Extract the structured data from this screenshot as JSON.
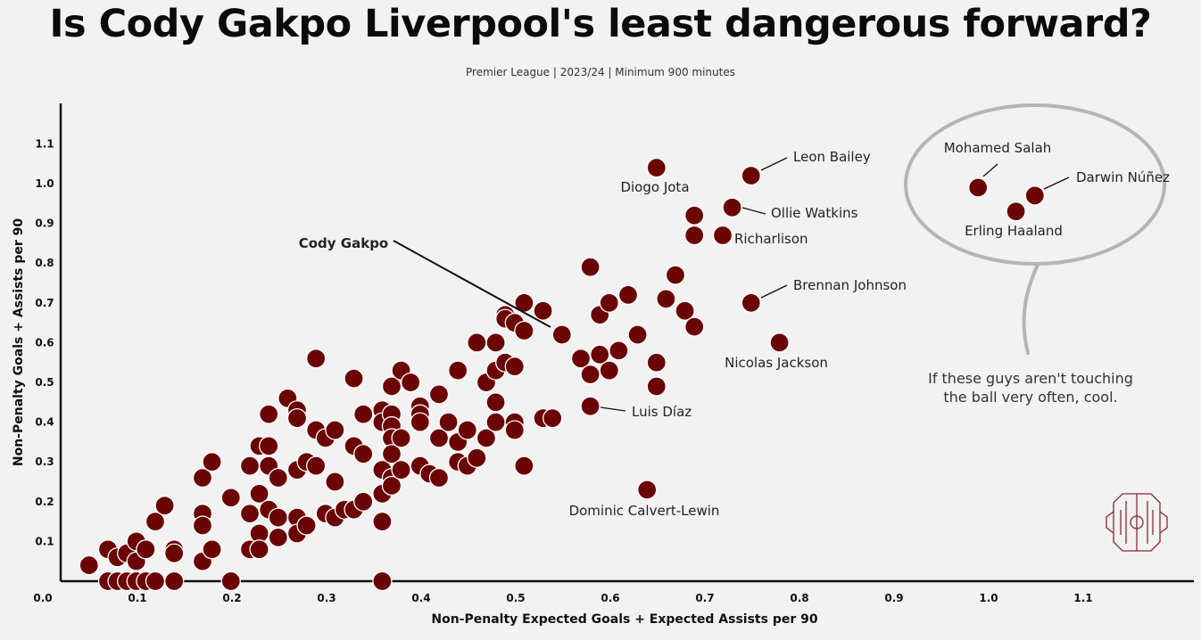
{
  "title": "Is Cody Gakpo Liverpool's least dangerous forward?",
  "subtitle": "Premier League | 2023/24 | Minimum 900 minutes",
  "chart_data": {
    "type": "scatter",
    "xlabel": "Non-Penalty Expected Goals + Expected Assists per 90",
    "ylabel": "Non-Penalty Goals + Assists per 90",
    "xlim": [
      0.0,
      1.2
    ],
    "ylim": [
      0.0,
      1.2
    ],
    "xticks": [
      "0.0",
      "0.1",
      "0.2",
      "0.3",
      "0.4",
      "0.5",
      "0.6",
      "0.7",
      "0.8",
      "0.9",
      "1.0",
      "1.1"
    ],
    "yticks": [
      "0.1",
      "0.2",
      "0.3",
      "0.4",
      "0.5",
      "0.6",
      "0.7",
      "0.8",
      "0.9",
      "1.0",
      "1.1"
    ],
    "grid": false,
    "point_color": "#6b0505",
    "annotation": "If these guys aren't touching the ball very often, cool.",
    "labeled_points": [
      {
        "name": "Leon Bailey",
        "x": 0.73,
        "y": 1.02
      },
      {
        "name": "Diogo Jota",
        "x": 0.63,
        "y": 1.04
      },
      {
        "name": "Ollie Watkins",
        "x": 0.71,
        "y": 0.94
      },
      {
        "name": "Richarlison",
        "x": 0.7,
        "y": 0.87
      },
      {
        "name": "Brennan Johnson",
        "x": 0.73,
        "y": 0.7
      },
      {
        "name": "Nicolas Jackson",
        "x": 0.76,
        "y": 0.6
      },
      {
        "name": "Cody Gakpo",
        "x": 0.53,
        "y": 0.62
      },
      {
        "name": "Luis Díaz",
        "x": 0.56,
        "y": 0.44
      },
      {
        "name": "Dominic Calvert-Lewin",
        "x": 0.62,
        "y": 0.23
      },
      {
        "name": "Mohamed Salah",
        "x": 0.97,
        "y": 0.99
      },
      {
        "name": "Darwin Núñez",
        "x": 1.03,
        "y": 0.97
      },
      {
        "name": "Erling Haaland",
        "x": 1.01,
        "y": 0.93
      }
    ],
    "points": [
      [
        0.03,
        0.04
      ],
      [
        0.05,
        0.08
      ],
      [
        0.05,
        0.0
      ],
      [
        0.06,
        0.06
      ],
      [
        0.06,
        0.0
      ],
      [
        0.07,
        0.07
      ],
      [
        0.07,
        0.0
      ],
      [
        0.08,
        0.1
      ],
      [
        0.08,
        0.05
      ],
      [
        0.08,
        0.0
      ],
      [
        0.09,
        0.08
      ],
      [
        0.09,
        0.0
      ],
      [
        0.1,
        0.15
      ],
      [
        0.1,
        0.0
      ],
      [
        0.11,
        0.19
      ],
      [
        0.12,
        0.08
      ],
      [
        0.12,
        0.07
      ],
      [
        0.12,
        0.0
      ],
      [
        0.15,
        0.26
      ],
      [
        0.15,
        0.17
      ],
      [
        0.15,
        0.14
      ],
      [
        0.15,
        0.05
      ],
      [
        0.16,
        0.3
      ],
      [
        0.16,
        0.08
      ],
      [
        0.18,
        0.21
      ],
      [
        0.18,
        0.0
      ],
      [
        0.2,
        0.29
      ],
      [
        0.2,
        0.17
      ],
      [
        0.2,
        0.08
      ],
      [
        0.21,
        0.34
      ],
      [
        0.21,
        0.22
      ],
      [
        0.21,
        0.12
      ],
      [
        0.21,
        0.08
      ],
      [
        0.22,
        0.42
      ],
      [
        0.22,
        0.34
      ],
      [
        0.22,
        0.29
      ],
      [
        0.22,
        0.18
      ],
      [
        0.23,
        0.26
      ],
      [
        0.23,
        0.16
      ],
      [
        0.23,
        0.11
      ],
      [
        0.24,
        0.46
      ],
      [
        0.25,
        0.43
      ],
      [
        0.25,
        0.41
      ],
      [
        0.25,
        0.28
      ],
      [
        0.25,
        0.16
      ],
      [
        0.25,
        0.12
      ],
      [
        0.26,
        0.3
      ],
      [
        0.26,
        0.14
      ],
      [
        0.27,
        0.56
      ],
      [
        0.27,
        0.38
      ],
      [
        0.27,
        0.29
      ],
      [
        0.28,
        0.36
      ],
      [
        0.28,
        0.17
      ],
      [
        0.29,
        0.38
      ],
      [
        0.29,
        0.25
      ],
      [
        0.29,
        0.16
      ],
      [
        0.3,
        0.18
      ],
      [
        0.31,
        0.51
      ],
      [
        0.31,
        0.34
      ],
      [
        0.31,
        0.18
      ],
      [
        0.32,
        0.42
      ],
      [
        0.32,
        0.32
      ],
      [
        0.32,
        0.2
      ],
      [
        0.34,
        0.43
      ],
      [
        0.34,
        0.4
      ],
      [
        0.34,
        0.28
      ],
      [
        0.34,
        0.22
      ],
      [
        0.34,
        0.15
      ],
      [
        0.34,
        0.0
      ],
      [
        0.35,
        0.49
      ],
      [
        0.35,
        0.42
      ],
      [
        0.35,
        0.39
      ],
      [
        0.35,
        0.36
      ],
      [
        0.35,
        0.32
      ],
      [
        0.35,
        0.26
      ],
      [
        0.35,
        0.24
      ],
      [
        0.36,
        0.53
      ],
      [
        0.36,
        0.36
      ],
      [
        0.36,
        0.28
      ],
      [
        0.37,
        0.5
      ],
      [
        0.38,
        0.44
      ],
      [
        0.38,
        0.42
      ],
      [
        0.38,
        0.4
      ],
      [
        0.38,
        0.29
      ],
      [
        0.39,
        0.27
      ],
      [
        0.4,
        0.47
      ],
      [
        0.4,
        0.36
      ],
      [
        0.4,
        0.26
      ],
      [
        0.41,
        0.4
      ],
      [
        0.42,
        0.53
      ],
      [
        0.42,
        0.35
      ],
      [
        0.42,
        0.3
      ],
      [
        0.43,
        0.38
      ],
      [
        0.43,
        0.29
      ],
      [
        0.44,
        0.31
      ],
      [
        0.44,
        0.6
      ],
      [
        0.45,
        0.5
      ],
      [
        0.45,
        0.36
      ],
      [
        0.46,
        0.6
      ],
      [
        0.46,
        0.53
      ],
      [
        0.46,
        0.45
      ],
      [
        0.46,
        0.4
      ],
      [
        0.47,
        0.67
      ],
      [
        0.47,
        0.55
      ],
      [
        0.47,
        0.66
      ],
      [
        0.48,
        0.65
      ],
      [
        0.48,
        0.54
      ],
      [
        0.48,
        0.4
      ],
      [
        0.48,
        0.38
      ],
      [
        0.49,
        0.7
      ],
      [
        0.49,
        0.63
      ],
      [
        0.49,
        0.29
      ],
      [
        0.51,
        0.68
      ],
      [
        0.51,
        0.41
      ],
      [
        0.52,
        0.41
      ],
      [
        0.55,
        0.56
      ],
      [
        0.56,
        0.79
      ],
      [
        0.56,
        0.52
      ],
      [
        0.57,
        0.67
      ],
      [
        0.57,
        0.57
      ],
      [
        0.58,
        0.7
      ],
      [
        0.58,
        0.53
      ],
      [
        0.59,
        0.58
      ],
      [
        0.6,
        0.72
      ],
      [
        0.61,
        0.62
      ],
      [
        0.63,
        0.55
      ],
      [
        0.63,
        0.49
      ],
      [
        0.64,
        0.71
      ],
      [
        0.65,
        0.77
      ],
      [
        0.66,
        0.68
      ],
      [
        0.67,
        0.64
      ],
      [
        0.67,
        0.92
      ],
      [
        0.67,
        0.87
      ]
    ]
  }
}
